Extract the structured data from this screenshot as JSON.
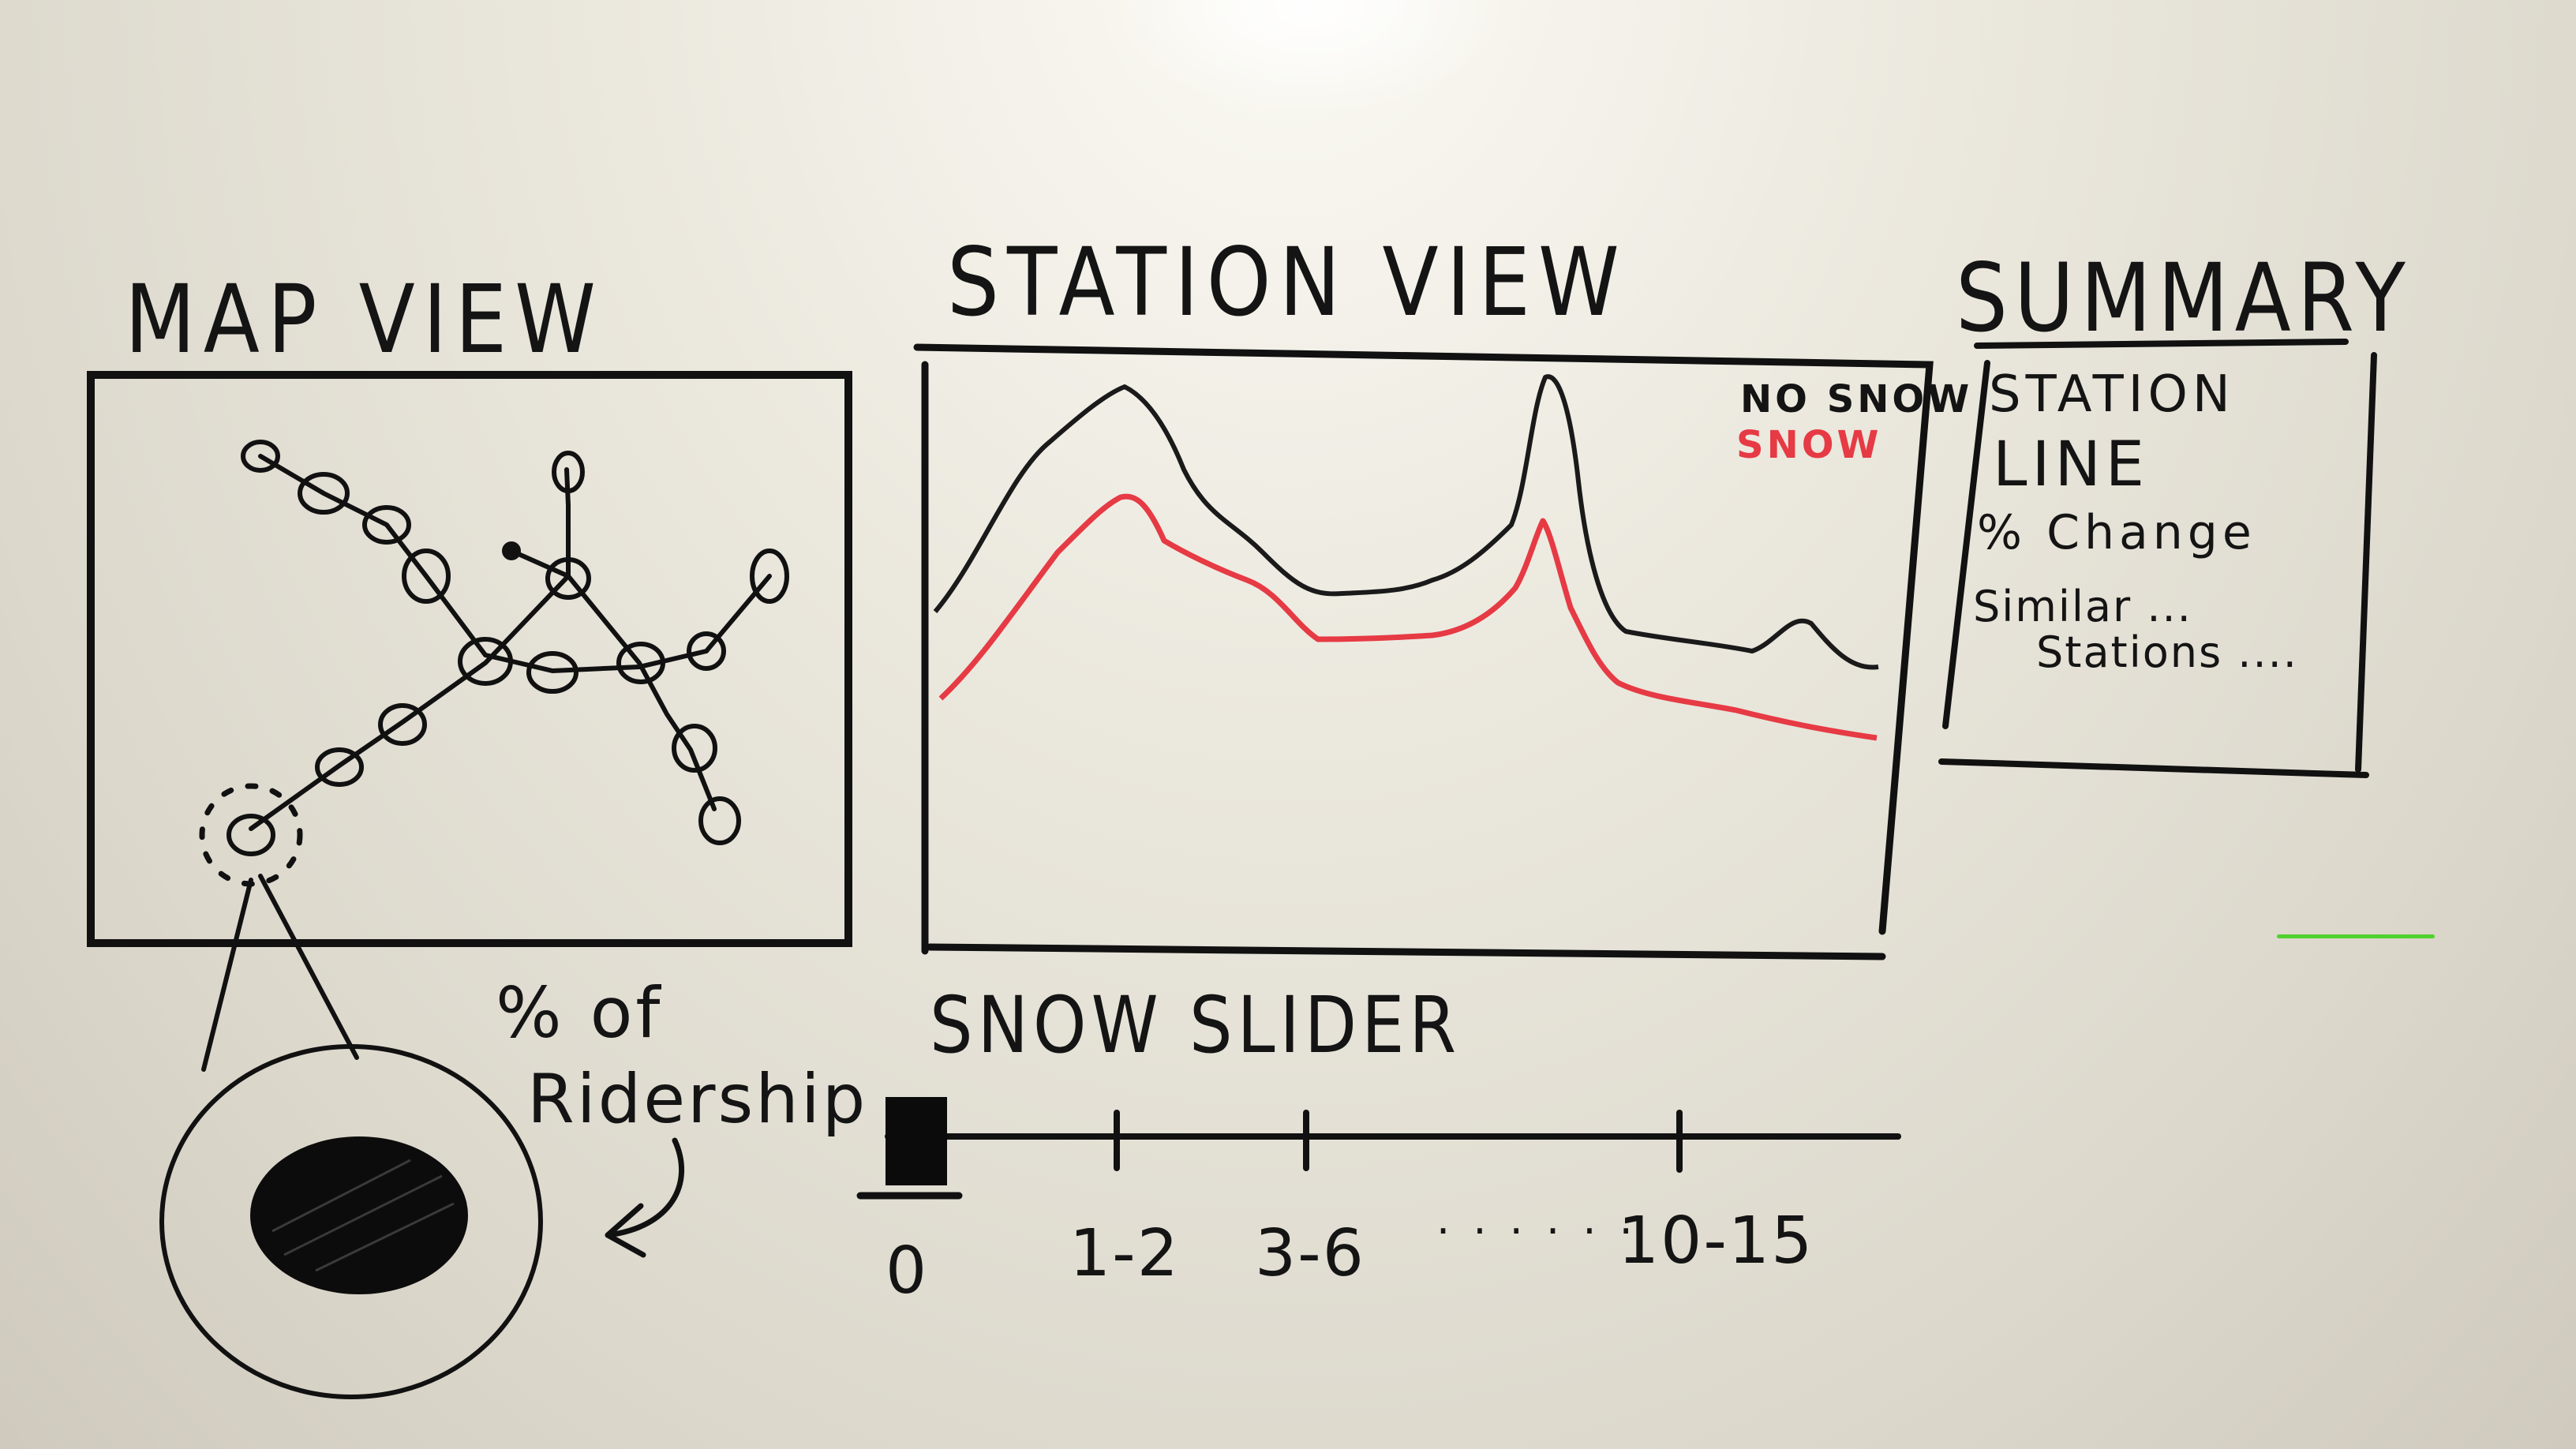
{
  "map_view": {
    "title": "MAP VIEW",
    "callout": {
      "line1": "% of",
      "line2": "Ridership"
    }
  },
  "station_view": {
    "title": "STATION VIEW",
    "legend": {
      "no_snow": "NO SNOW",
      "snow": "SNOW"
    }
  },
  "summary": {
    "title": "SUMMARY",
    "items": {
      "station": "STATION",
      "line": "LINE",
      "change": "% Change",
      "similar": "Similar ...",
      "stations": "Stations ...."
    }
  },
  "snow_slider": {
    "title": "SNOW SLIDER",
    "ticks": [
      "0",
      "1-2",
      "3-6",
      "10-15"
    ],
    "ellipsis": ". . . . . .",
    "selected": "0"
  },
  "colors": {
    "ink": "#141414",
    "snow": "#e63a44",
    "board": "#e8e5dc",
    "marker_green": "#4fd12e"
  }
}
